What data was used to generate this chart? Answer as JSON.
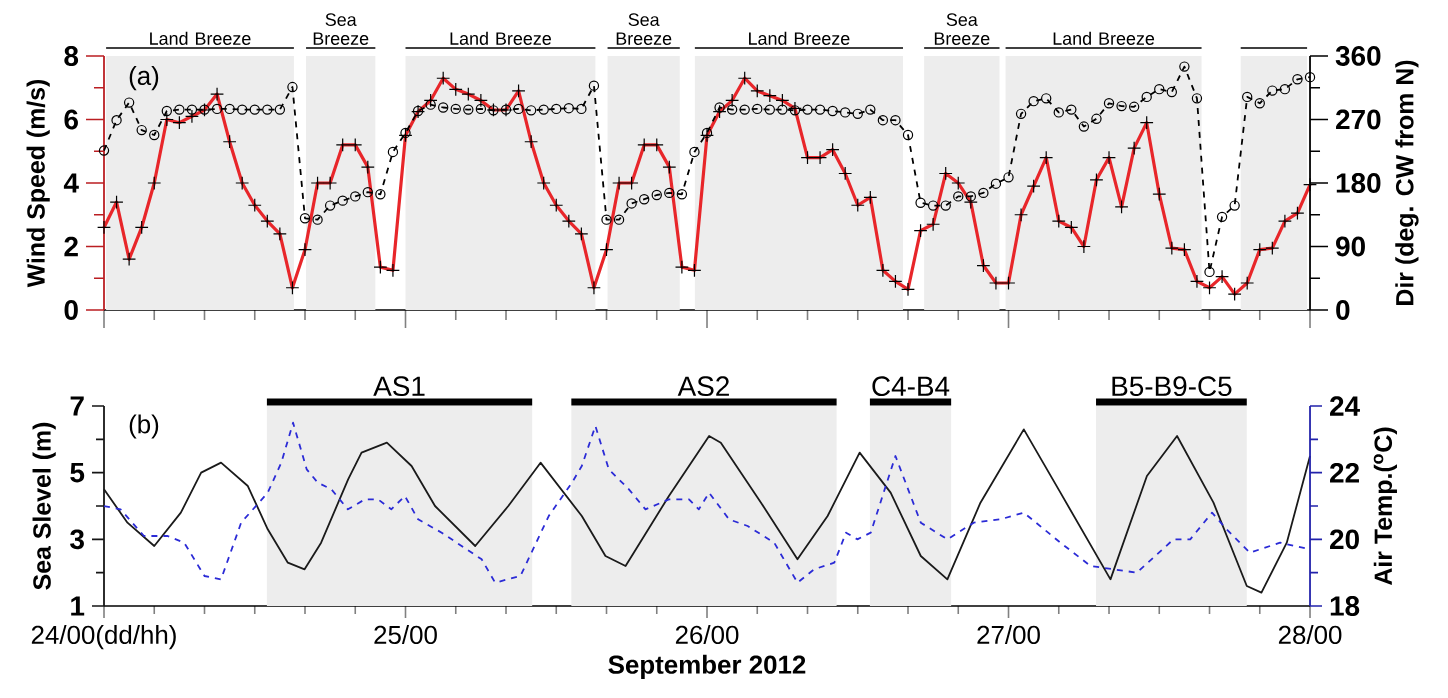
{
  "chart_data": [
    {
      "type": "line",
      "xlim": [
        "2012-09-24",
        "2012-09-28"
      ],
      "xticks": [
        {
          "value": "2012-09-24",
          "label": null
        },
        {
          "value": "2012-09-25",
          "label": null
        },
        {
          "value": "2012-09-26",
          "label": null
        },
        {
          "value": "2012-09-27",
          "label": null
        },
        {
          "value": "2012-09-28",
          "label": null
        }
      ],
      "tick_labels": "y",
      "ylim": [
        0,
        8
      ],
      "yticks": [
        0,
        2,
        4,
        6,
        8
      ],
      "ylabel": "Wind Speed (m/s)",
      "y2lim": [
        0,
        360
      ],
      "y2ticks": [
        0,
        90,
        180,
        270,
        360
      ],
      "y2label": "Dir (deg. CW from N)",
      "annotations": [
        "(a)"
      ],
      "bands": [
        {
          "axis": "x",
          "from": "2012-09-24T00:10",
          "to": "2012-09-24T15:07",
          "label": "Land Breeze"
        },
        {
          "axis": "x",
          "from": "2012-09-24T16:05",
          "to": "2012-09-24T21:36",
          "label": "Sea Breeze"
        },
        {
          "axis": "x",
          "from": "2012-09-25T00:00",
          "to": "2012-09-25T15:07",
          "label": "Land Breeze"
        },
        {
          "axis": "x",
          "from": "2012-09-25T16:05",
          "to": "2012-09-25T21:50",
          "label": "Sea Breeze"
        },
        {
          "axis": "x",
          "from": "2012-09-25T23:02",
          "to": "2012-09-26T15:36",
          "label": "Land Breeze"
        },
        {
          "axis": "x",
          "from": "2012-09-26T17:17",
          "to": "2012-09-26T23:17",
          "label": "Sea Breeze"
        },
        {
          "axis": "x",
          "from": "2012-09-26T23:46",
          "to": "2012-09-27T15:22",
          "label": "Land Breeze"
        },
        {
          "axis": "x",
          "from": "2012-09-27T18:29",
          "to": "2012-09-27T23:46",
          "label": null
        }
      ],
      "x": [
        "2012-09-24T00:00",
        "2012-09-24T01:00",
        "2012-09-24T02:00",
        "2012-09-24T03:00",
        "2012-09-24T04:00",
        "2012-09-24T05:00",
        "2012-09-24T06:00",
        "2012-09-24T07:00",
        "2012-09-24T08:00",
        "2012-09-24T09:00",
        "2012-09-24T10:00",
        "2012-09-24T11:00",
        "2012-09-24T12:00",
        "2012-09-24T13:00",
        "2012-09-24T14:00",
        "2012-09-24T15:00",
        "2012-09-24T16:00",
        "2012-09-24T17:00",
        "2012-09-24T18:00",
        "2012-09-24T19:00",
        "2012-09-24T20:00",
        "2012-09-24T21:00",
        "2012-09-24T22:00",
        "2012-09-24T23:00",
        "2012-09-25T00:00",
        "2012-09-25T01:00",
        "2012-09-25T02:00",
        "2012-09-25T03:00",
        "2012-09-25T04:00",
        "2012-09-25T05:00",
        "2012-09-25T06:00",
        "2012-09-25T07:00",
        "2012-09-25T08:00",
        "2012-09-25T09:00",
        "2012-09-25T10:00",
        "2012-09-25T11:00",
        "2012-09-25T12:00",
        "2012-09-25T13:00",
        "2012-09-25T14:00",
        "2012-09-25T15:00",
        "2012-09-25T16:00",
        "2012-09-25T17:00",
        "2012-09-25T18:00",
        "2012-09-25T19:00",
        "2012-09-25T20:00",
        "2012-09-25T21:00",
        "2012-09-25T22:00",
        "2012-09-25T23:00",
        "2012-09-26T00:00",
        "2012-09-26T01:00",
        "2012-09-26T02:00",
        "2012-09-26T03:00",
        "2012-09-26T04:00",
        "2012-09-26T05:00",
        "2012-09-26T06:00",
        "2012-09-26T07:00",
        "2012-09-26T08:00",
        "2012-09-26T09:00",
        "2012-09-26T10:00",
        "2012-09-26T11:00",
        "2012-09-26T12:00",
        "2012-09-26T13:00",
        "2012-09-26T14:00",
        "2012-09-26T15:00",
        "2012-09-26T16:00",
        "2012-09-26T17:00",
        "2012-09-26T18:00",
        "2012-09-26T19:00",
        "2012-09-26T20:00",
        "2012-09-26T21:00",
        "2012-09-26T22:00",
        "2012-09-26T23:00",
        "2012-09-27T00:00",
        "2012-09-27T01:00",
        "2012-09-27T02:00",
        "2012-09-27T03:00",
        "2012-09-27T04:00",
        "2012-09-27T05:00",
        "2012-09-27T06:00",
        "2012-09-27T07:00",
        "2012-09-27T08:00",
        "2012-09-27T09:00",
        "2012-09-27T10:00",
        "2012-09-27T11:00",
        "2012-09-27T12:00",
        "2012-09-27T13:00",
        "2012-09-27T14:00",
        "2012-09-27T15:00",
        "2012-09-27T16:00",
        "2012-09-27T17:00",
        "2012-09-27T18:00",
        "2012-09-27T19:00",
        "2012-09-27T20:00",
        "2012-09-27T21:00",
        "2012-09-27T22:00",
        "2012-09-27T23:00",
        "2012-09-28T00:00"
      ],
      "series": [
        {
          "color": "#e8262a",
          "marker": "cross",
          "line_style": "solid",
          "values": [
            2.6,
            3.4,
            1.6,
            2.6,
            4.0,
            6.0,
            5.9,
            6.1,
            6.3,
            6.8,
            5.3,
            4.0,
            3.3,
            2.8,
            2.4,
            0.7,
            1.9,
            4.0,
            4.0,
            5.2,
            5.2,
            4.5,
            1.35,
            1.25,
            5.5,
            6.25,
            6.6,
            7.3,
            6.95,
            6.8,
            6.6,
            6.3,
            6.3,
            6.9,
            5.3,
            4.0,
            3.3,
            2.8,
            2.4,
            0.7,
            1.9,
            4.0,
            4.0,
            5.2,
            5.2,
            4.5,
            1.35,
            1.25,
            5.5,
            6.25,
            6.6,
            7.3,
            6.9,
            6.75,
            6.6,
            6.35,
            4.8,
            4.8,
            5.05,
            4.3,
            3.3,
            3.55,
            1.25,
            0.9,
            0.65,
            2.5,
            2.7,
            4.3,
            4.0,
            3.4,
            1.4,
            0.85,
            0.85,
            3.0,
            3.9,
            4.8,
            2.8,
            2.6,
            2.0,
            4.1,
            4.8,
            3.25,
            5.1,
            5.9,
            3.65,
            1.95,
            1.9,
            0.9,
            0.7,
            1.05,
            0.5,
            0.85,
            1.9,
            1.95,
            2.8,
            3.05,
            3.95
          ]
        },
        {
          "color": "#000000",
          "marker": "circle",
          "line_style": "dashed",
          "axis": "y2",
          "values": [
            226,
            269,
            294,
            255,
            248,
            282,
            284,
            284,
            284,
            285,
            285,
            284,
            284,
            284,
            284,
            316,
            130,
            128,
            148,
            155,
            161,
            167,
            164,
            224,
            251,
            282,
            291,
            287,
            285,
            284,
            285,
            283,
            284,
            285,
            283,
            284,
            285,
            286,
            285,
            318,
            128,
            128,
            151,
            157,
            163,
            166,
            164,
            224,
            251,
            287,
            284,
            284,
            285,
            284,
            284,
            283,
            284,
            284,
            282,
            280,
            278,
            284,
            269,
            269,
            248,
            152,
            148,
            148,
            161,
            161,
            166,
            179,
            188,
            278,
            296,
            300,
            280,
            284,
            260,
            271,
            293,
            289,
            288,
            302,
            313,
            309,
            345,
            300,
            54,
            132,
            148,
            302,
            293,
            311,
            313,
            327,
            330
          ]
        }
      ]
    },
    {
      "type": "line",
      "xlim": [
        "2012-09-24",
        "2012-09-28"
      ],
      "xticks": [
        {
          "value": "2012-09-24",
          "label": "24/00(dd/hh)"
        },
        {
          "value": "2012-09-25",
          "label": "25/00"
        },
        {
          "value": "2012-09-26",
          "label": "26/00"
        },
        {
          "value": "2012-09-27",
          "label": "27/00"
        },
        {
          "value": "2012-09-28",
          "label": "28/00"
        }
      ],
      "xlabel": "September 2012",
      "ylim": [
        1,
        7
      ],
      "yticks": [
        1,
        3,
        5,
        7
      ],
      "ylabel": "Sea Slevel (m)",
      "y2lim": [
        18,
        24
      ],
      "y2ticks": [
        18,
        20,
        22,
        24
      ],
      "y2label": "Air Temp.($^{o}$C)",
      "annotations": [
        "(b)"
      ],
      "bands": [
        {
          "axis": "x",
          "from": "2012-09-24T12:58",
          "to": "2012-09-25T10:05",
          "label": "AS1"
        },
        {
          "axis": "x",
          "from": "2012-09-25T13:12",
          "to": "2012-09-26T10:19",
          "label": "AS2"
        },
        {
          "axis": "x",
          "from": "2012-09-26T12:58",
          "to": "2012-09-26T19:26",
          "label": "C4-B4"
        },
        {
          "axis": "x",
          "from": "2012-09-27T06:58",
          "to": "2012-09-27T18:58",
          "label": "B5-B9-C5"
        }
      ],
      "series": [
        {
          "color": "#1a1a1a",
          "marker": "none",
          "line_style": "solid",
          "x": [
            "2012-09-24T00:00",
            "2012-09-24T01:52",
            "2012-09-24T04:00",
            "2012-09-24T06:07",
            "2012-09-24T07:44",
            "2012-09-24T09:19",
            "2012-09-24T11:27",
            "2012-09-24T13:02",
            "2012-09-24T14:38",
            "2012-09-24T15:58",
            "2012-09-24T17:17",
            "2012-09-24T19:26",
            "2012-09-24T20:30",
            "2012-09-24T22:31",
            "2012-09-25T00:29",
            "2012-09-25T02:21",
            "2012-09-25T05:33",
            "2012-09-25T08:11",
            "2012-09-25T10:45",
            "2012-09-25T14:02",
            "2012-09-25T15:55",
            "2012-09-25T17:31",
            "2012-09-25T20:58",
            "2012-09-26T00:10",
            "2012-09-26T01:06",
            "2012-09-26T04:18",
            "2012-09-26T07:12",
            "2012-09-26T09:36",
            "2012-09-26T12:09",
            "2012-09-26T14:37",
            "2012-09-26T17:01",
            "2012-09-26T19:08",
            "2012-09-26T21:46",
            "2012-09-27T01:13",
            "2012-09-27T04:08",
            "2012-09-27T08:07",
            "2012-09-27T11:01",
            "2012-09-27T13:25",
            "2012-09-27T16:19",
            "2012-09-27T18:58",
            "2012-09-27T20:08",
            "2012-09-27T22:09",
            "2012-09-28T00:00"
          ],
          "values": [
            4.5,
            3.5,
            2.8,
            3.8,
            5.0,
            5.3,
            4.6,
            3.3,
            2.3,
            2.1,
            2.9,
            4.8,
            5.6,
            5.9,
            5.2,
            4.0,
            2.8,
            4.0,
            5.3,
            3.7,
            2.5,
            2.2,
            4.3,
            6.1,
            5.9,
            4.1,
            2.4,
            3.7,
            5.6,
            4.4,
            2.5,
            1.8,
            4.1,
            6.3,
            4.4,
            1.8,
            4.9,
            6.1,
            4.1,
            1.6,
            1.4,
            2.9,
            5.5
          ]
        },
        {
          "color": "#2b2bd6",
          "marker": "none",
          "line_style": "dashed",
          "axis": "y2",
          "x": [
            "2012-09-24T00:00",
            "2012-09-24T01:19",
            "2012-09-24T03:11",
            "2012-09-24T05:04",
            "2012-09-24T06:23",
            "2012-09-24T08:00",
            "2012-09-24T09:19",
            "2012-09-24T10:55",
            "2012-09-24T13:02",
            "2012-09-24T14:07",
            "2012-09-24T15:03",
            "2012-09-24T16:08",
            "2012-09-24T17:01",
            "2012-09-24T18:06",
            "2012-09-24T19:25",
            "2012-09-24T20:46",
            "2012-09-24T21:49",
            "2012-09-24T22:52",
            "2012-09-24T23:57",
            "2012-09-25T01:00",
            "2012-09-25T02:53",
            "2012-09-25T04:28",
            "2012-09-25T06:04",
            "2012-09-25T07:08",
            "2012-09-25T09:09",
            "2012-09-25T11:24",
            "2012-09-25T13:15",
            "2012-09-25T14:02",
            "2012-09-25T15:07",
            "2012-09-25T16:11",
            "2012-09-25T17:47",
            "2012-09-25T19:06",
            "2012-09-25T20:58",
            "2012-09-25T22:34",
            "2012-09-25T23:21",
            "2012-09-26T00:10",
            "2012-09-26T01:45",
            "2012-09-26T03:14",
            "2012-09-26T05:21",
            "2012-09-26T07:12",
            "2012-09-26T08:31",
            "2012-09-26T10:08",
            "2012-09-26T11:04",
            "2012-09-26T11:58",
            "2012-09-26T13:02",
            "2012-09-26T15:00",
            "2012-09-26T17:01",
            "2012-09-26T19:08",
            "2012-09-26T21:14",
            "2012-09-26T23:21",
            "2012-09-27T01:13",
            "2012-09-27T04:08",
            "2012-09-27T06:32",
            "2012-09-27T08:22",
            "2012-09-27T10:13",
            "2012-09-27T13:08",
            "2012-09-27T14:28",
            "2012-09-27T16:12",
            "2012-09-27T17:22",
            "2012-09-27T19:13",
            "2012-09-27T21:37",
            "2012-09-28T00:00"
          ],
          "values": [
            21.0,
            20.9,
            20.1,
            20.1,
            19.9,
            18.9,
            18.8,
            20.5,
            21.4,
            22.3,
            23.5,
            22.1,
            21.7,
            21.5,
            20.9,
            21.2,
            21.2,
            20.9,
            21.3,
            20.6,
            20.2,
            19.8,
            19.4,
            18.7,
            18.9,
            20.7,
            21.7,
            22.2,
            23.4,
            22.1,
            21.5,
            20.9,
            21.2,
            21.2,
            20.9,
            21.4,
            20.6,
            20.4,
            19.9,
            18.7,
            19.1,
            19.3,
            20.2,
            20.0,
            20.2,
            22.5,
            20.5,
            20.0,
            20.5,
            20.6,
            20.8,
            19.9,
            19.2,
            19.1,
            19.0,
            20.0,
            20.0,
            20.8,
            20.3,
            19.6,
            19.9,
            19.7
          ]
        }
      ]
    }
  ]
}
